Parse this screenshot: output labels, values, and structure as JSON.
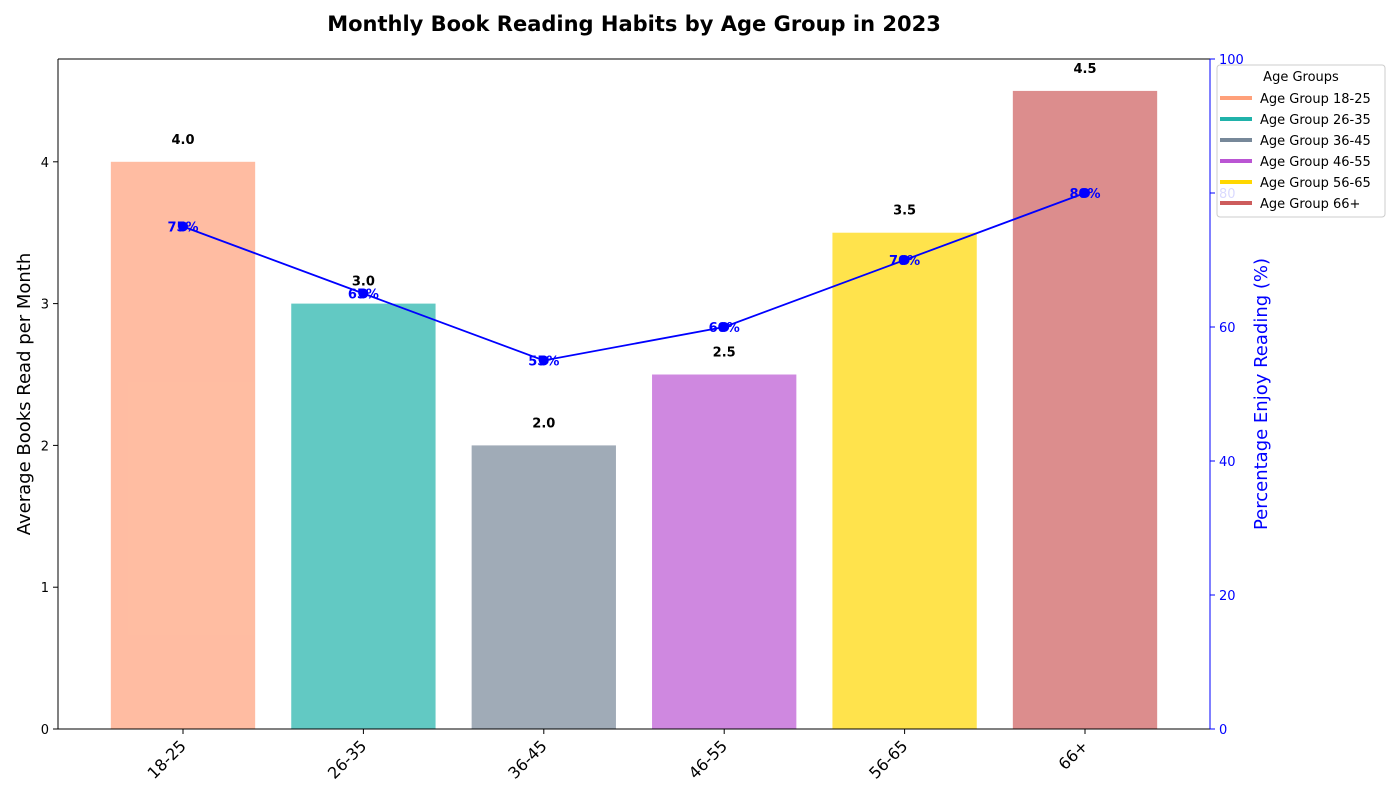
{
  "chart_data": {
    "type": "bar",
    "title": "Monthly Book Reading Habits by Age Group in 2023",
    "categories": [
      "18-25",
      "26-35",
      "36-45",
      "46-55",
      "56-65",
      "66+"
    ],
    "ylabel": "Average Books Read per Month",
    "ylabel_right": "Percentage Enjoy Reading (%)",
    "ylim": [
      0,
      4.725
    ],
    "ylim_right": [
      0,
      100
    ],
    "yticks": [
      "0",
      "1",
      "2",
      "3",
      "4"
    ],
    "yticks_right": [
      "0",
      "20",
      "40",
      "60",
      "80",
      "100"
    ],
    "grid": false,
    "series": [
      {
        "type": "bar",
        "values": [
          4.0,
          3.0,
          2.0,
          2.5,
          3.5,
          4.5
        ],
        "value_labels": [
          "4.0",
          "3.0",
          "2.0",
          "2.5",
          "3.5",
          "4.5"
        ],
        "colors": [
          "#FFA07A",
          "#20B2AA",
          "#778899",
          "#BA55D3",
          "#FFD700",
          "#CD5C5C"
        ],
        "opacity": 0.7
      },
      {
        "type": "line",
        "axis": "right",
        "values": [
          75,
          65,
          55,
          60,
          70,
          80
        ],
        "value_labels": [
          "75%",
          "65%",
          "55%",
          "60%",
          "70%",
          "80%"
        ],
        "color": "#0000FF"
      }
    ],
    "legend": {
      "title": "Age Groups",
      "placement": "upper-right-outside",
      "entries": [
        "Age Group 18-25",
        "Age Group 26-35",
        "Age Group 36-45",
        "Age Group 46-55",
        "Age Group 56-65",
        "Age Group 66+"
      ]
    }
  }
}
